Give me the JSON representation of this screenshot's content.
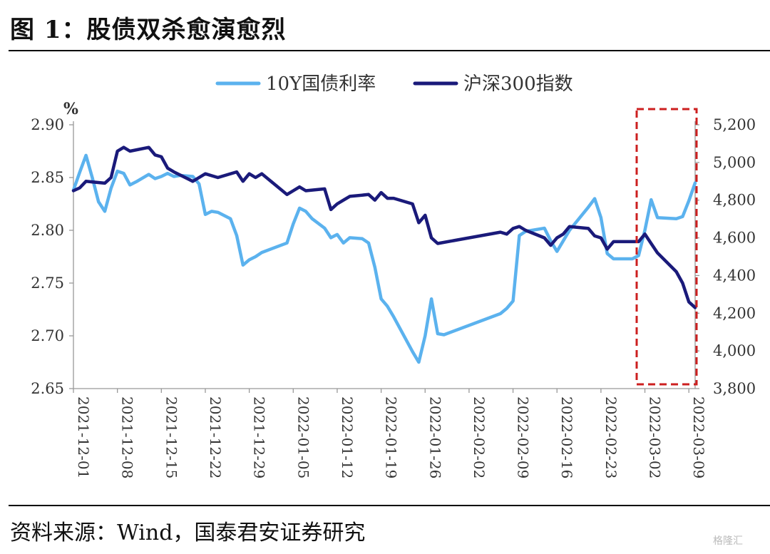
{
  "figure": {
    "title": "图 1：股债双杀愈演愈烈",
    "source": "资料来源：Wind，国泰君安证券研究"
  },
  "watermark": "格隆汇",
  "chart_data": {
    "type": "line",
    "left_axis": {
      "unit": "%",
      "ylim": [
        2.65,
        2.9
      ],
      "ticks": [
        "2.90",
        "2.85",
        "2.80",
        "2.75",
        "2.70",
        "2.65"
      ]
    },
    "right_axis": {
      "ylim": [
        3800,
        5200
      ],
      "ticks": [
        "5,200",
        "5,000",
        "4,800",
        "4,600",
        "4,400",
        "4,200",
        "4,000",
        "3,800"
      ]
    },
    "x_ticks": [
      "2021-12-01",
      "2021-12-08",
      "2021-12-15",
      "2021-12-22",
      "2021-12-29",
      "2022-01-05",
      "2022-01-12",
      "2022-01-19",
      "2022-01-26",
      "2022-02-02",
      "2022-02-09",
      "2022-02-16",
      "2022-02-23",
      "2022-03-02",
      "2022-03-09"
    ],
    "x_range": [
      "2021-12-01",
      "2022-03-10"
    ],
    "legend": "top-center",
    "colors": {
      "bond": "#5bb2ee",
      "index": "#1a1a7a",
      "highlight": "#cc1f1f"
    },
    "series": [
      {
        "name": "10Y国债利率",
        "axis": "left",
        "x": [
          "2021-12-01",
          "2021-12-02",
          "2021-12-03",
          "2021-12-04",
          "2021-12-05",
          "2021-12-06",
          "2021-12-07",
          "2021-12-08",
          "2021-12-09",
          "2021-12-10",
          "2021-12-11",
          "2021-12-13",
          "2021-12-14",
          "2021-12-15",
          "2021-12-16",
          "2021-12-17",
          "2021-12-18",
          "2021-12-20",
          "2021-12-21",
          "2021-12-22",
          "2021-12-23",
          "2021-12-24",
          "2021-12-26",
          "2021-12-27",
          "2021-12-28",
          "2021-12-29",
          "2021-12-30",
          "2021-12-31",
          "2022-01-04",
          "2022-01-05",
          "2022-01-06",
          "2022-01-07",
          "2022-01-08",
          "2022-01-10",
          "2022-01-11",
          "2022-01-12",
          "2022-01-13",
          "2022-01-14",
          "2022-01-16",
          "2022-01-17",
          "2022-01-18",
          "2022-01-19",
          "2022-01-20",
          "2022-01-21",
          "2022-01-24",
          "2022-01-25",
          "2022-01-26",
          "2022-01-27",
          "2022-01-28",
          "2022-01-29",
          "2022-02-07",
          "2022-02-08",
          "2022-02-09",
          "2022-02-10",
          "2022-02-11",
          "2022-02-14",
          "2022-02-15",
          "2022-02-16",
          "2022-02-17",
          "2022-02-18",
          "2022-02-21",
          "2022-02-22",
          "2022-02-23",
          "2022-02-24",
          "2022-02-25",
          "2022-02-28",
          "2022-03-01",
          "2022-03-02",
          "2022-03-03",
          "2022-03-04",
          "2022-03-07",
          "2022-03-08",
          "2022-03-09",
          "2022-03-10"
        ],
        "values": [
          2.838,
          2.855,
          2.871,
          2.85,
          2.827,
          2.818,
          2.84,
          2.856,
          2.854,
          2.843,
          2.846,
          2.853,
          2.849,
          2.851,
          2.854,
          2.851,
          2.852,
          2.851,
          2.844,
          2.815,
          2.818,
          2.817,
          2.811,
          2.795,
          2.767,
          2.772,
          2.775,
          2.779,
          2.788,
          2.806,
          2.821,
          2.818,
          2.811,
          2.802,
          2.793,
          2.796,
          2.788,
          2.793,
          2.792,
          2.788,
          2.765,
          2.735,
          2.728,
          2.718,
          2.685,
          2.675,
          2.7,
          2.735,
          2.702,
          2.701,
          2.721,
          2.726,
          2.733,
          2.795,
          2.799,
          2.802,
          2.79,
          2.78,
          2.79,
          2.8,
          2.822,
          2.83,
          2.812,
          2.778,
          2.773,
          2.773,
          2.776,
          2.8,
          2.829,
          2.812,
          2.811,
          2.813,
          2.828,
          2.845
        ]
      },
      {
        "name": "沪深300指数",
        "axis": "right",
        "x": [
          "2021-12-01",
          "2021-12-02",
          "2021-12-03",
          "2021-12-06",
          "2021-12-07",
          "2021-12-08",
          "2021-12-09",
          "2021-12-10",
          "2021-12-13",
          "2021-12-14",
          "2021-12-15",
          "2021-12-16",
          "2021-12-17",
          "2021-12-20",
          "2021-12-21",
          "2021-12-22",
          "2021-12-23",
          "2021-12-24",
          "2021-12-27",
          "2021-12-28",
          "2021-12-29",
          "2021-12-30",
          "2021-12-31",
          "2022-01-04",
          "2022-01-05",
          "2022-01-06",
          "2022-01-07",
          "2022-01-10",
          "2022-01-11",
          "2022-01-12",
          "2022-01-13",
          "2022-01-14",
          "2022-01-17",
          "2022-01-18",
          "2022-01-19",
          "2022-01-20",
          "2022-01-21",
          "2022-01-24",
          "2022-01-25",
          "2022-01-26",
          "2022-01-27",
          "2022-01-28",
          "2022-02-07",
          "2022-02-08",
          "2022-02-09",
          "2022-02-10",
          "2022-02-11",
          "2022-02-14",
          "2022-02-15",
          "2022-02-16",
          "2022-02-17",
          "2022-02-18",
          "2022-02-21",
          "2022-02-22",
          "2022-02-23",
          "2022-02-24",
          "2022-02-25",
          "2022-02-28",
          "2022-03-01",
          "2022-03-02",
          "2022-03-03",
          "2022-03-04",
          "2022-03-07",
          "2022-03-08",
          "2022-03-09",
          "2022-03-10"
        ],
        "values": [
          4850,
          4865,
          4900,
          4890,
          4920,
          5060,
          5080,
          5060,
          5080,
          5040,
          5030,
          4970,
          4950,
          4900,
          4920,
          4940,
          4930,
          4920,
          4950,
          4900,
          4940,
          4920,
          4940,
          4830,
          4850,
          4870,
          4850,
          4860,
          4750,
          4780,
          4800,
          4820,
          4830,
          4800,
          4840,
          4810,
          4810,
          4780,
          4680,
          4720,
          4600,
          4570,
          4630,
          4620,
          4650,
          4660,
          4640,
          4600,
          4560,
          4600,
          4620,
          4660,
          4650,
          4610,
          4600,
          4540,
          4580,
          4580,
          4580,
          4620,
          4570,
          4520,
          4420,
          4360,
          4260,
          4230
        ]
      }
    ],
    "highlight_box": {
      "from": "2022-03-01",
      "to": "2022-03-10"
    }
  }
}
